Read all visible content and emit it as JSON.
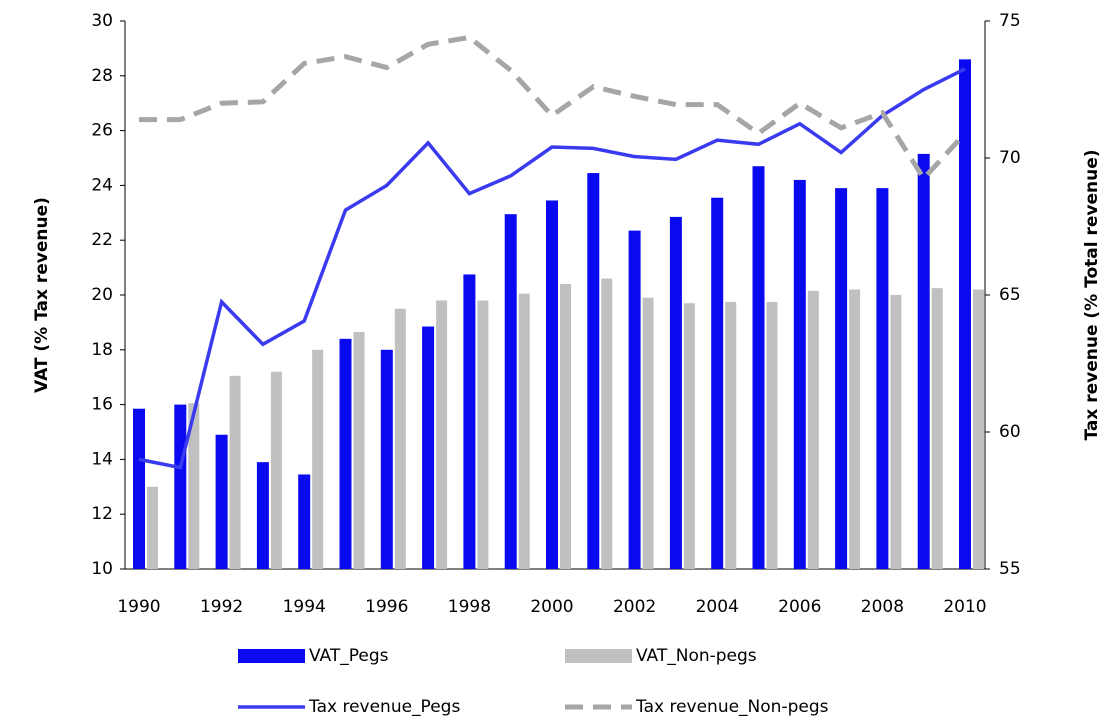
{
  "chart_data": {
    "type": "bar-line",
    "y_label": "VAT (% Tax revenue)",
    "y2_label": "Tax revenue (% Total revenue)",
    "categories": [
      "1990",
      null,
      "1992",
      null,
      "1994",
      null,
      "1996",
      null,
      "1998",
      null,
      "2000",
      null,
      "2002",
      null,
      "2004",
      null,
      "2006",
      null,
      "2008",
      null,
      "2010"
    ],
    "ylim": [
      10,
      30
    ],
    "yticks": [
      10,
      12,
      14,
      16,
      18,
      20,
      22,
      24,
      26,
      28,
      30
    ],
    "y2lim": [
      55,
      75
    ],
    "y2ticks": [
      55,
      60,
      65,
      70,
      75
    ],
    "grid": false,
    "series": [
      {
        "name": "VAT_Pegs",
        "type": "bar",
        "color": "#0a0af0",
        "values": [
          15.85,
          16.0,
          14.9,
          13.9,
          13.45,
          18.4,
          18.0,
          18.85,
          20.75,
          22.95,
          23.45,
          24.45,
          22.35,
          22.85,
          23.55,
          24.7,
          24.2,
          23.9,
          23.9,
          25.15,
          28.6
        ]
      },
      {
        "name": "VAT_Non-pegs",
        "type": "bar",
        "color": "#c0c0c0",
        "values": [
          13.0,
          16.05,
          17.05,
          17.2,
          18.0,
          18.65,
          19.5,
          19.8,
          19.8,
          20.05,
          20.4,
          20.6,
          19.9,
          19.7,
          19.75,
          19.75,
          20.15,
          20.2,
          20.0,
          20.25,
          20.2
        ]
      },
      {
        "name": "Tax revenue_Pegs",
        "type": "line",
        "axis": "y2",
        "color": "#3a3af0",
        "dashed": false,
        "values": [
          59.0,
          58.7,
          64.75,
          63.2,
          64.05,
          68.1,
          69.0,
          70.55,
          68.7,
          69.35,
          70.4,
          70.35,
          70.05,
          69.95,
          70.65,
          70.5,
          71.25,
          70.2,
          71.55,
          72.5,
          73.25
        ]
      },
      {
        "name": "Tax revenue_Non-pegs",
        "type": "line",
        "axis": "y2",
        "color": "#a6a6a6",
        "dashed": true,
        "values": [
          71.4,
          71.4,
          72.0,
          72.05,
          73.45,
          73.7,
          73.3,
          74.15,
          74.4,
          73.2,
          71.55,
          72.6,
          72.25,
          71.95,
          71.95,
          70.9,
          72.0,
          71.1,
          71.65,
          69.25,
          70.9
        ]
      }
    ]
  }
}
